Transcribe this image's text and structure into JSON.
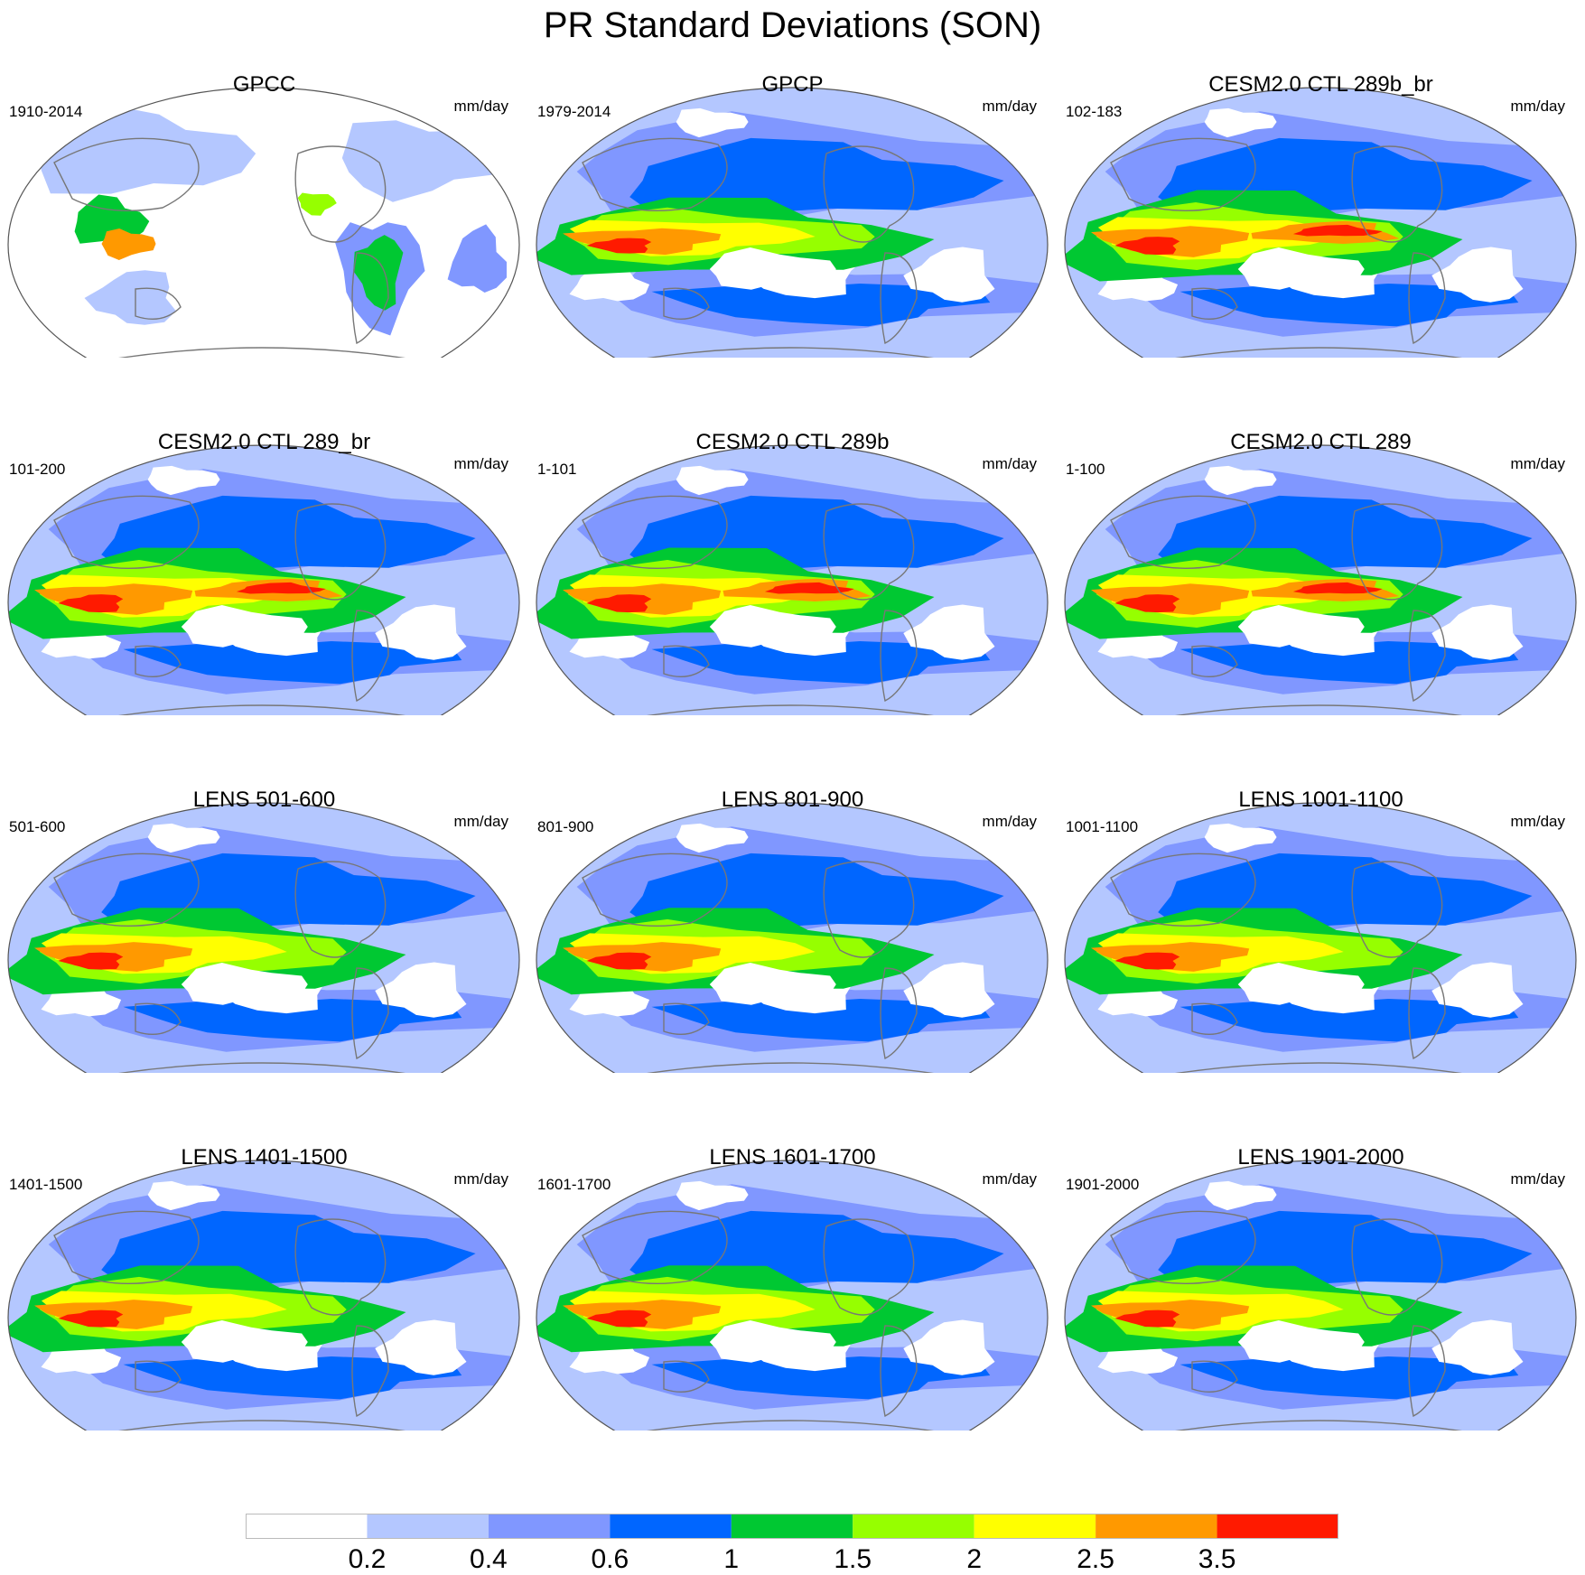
{
  "figure": {
    "title": "PR Standard Deviations (SON)"
  },
  "panels": [
    {
      "title": "GPCC",
      "period": "1910-2014",
      "units": "mm/day",
      "kind": "gpcc",
      "peak": 0.6
    },
    {
      "title": "GPCP",
      "period": "1979-2014",
      "units": "mm/day",
      "kind": "obs",
      "peak": 0.85
    },
    {
      "title": "CESM2.0 CTL 289b_br",
      "period": "102-183",
      "units": "mm/day",
      "kind": "model",
      "peak": 1.0
    },
    {
      "title": "CESM2.0 CTL 289_br",
      "period": "101-200",
      "units": "mm/day",
      "kind": "model",
      "peak": 1.0
    },
    {
      "title": "CESM2.0 CTL 289b",
      "period": "1-101",
      "units": "mm/day",
      "kind": "model",
      "peak": 1.0
    },
    {
      "title": "CESM2.0 CTL 289",
      "period": "1-100",
      "units": "mm/day",
      "kind": "model",
      "peak": 1.0
    },
    {
      "title": "LENS 501-600",
      "period": "501-600",
      "units": "mm/day",
      "kind": "lens",
      "peak": 0.95
    },
    {
      "title": "LENS 801-900",
      "period": "801-900",
      "units": "mm/day",
      "kind": "lens",
      "peak": 0.95
    },
    {
      "title": "LENS 1001-1100",
      "period": "1001-1100",
      "units": "mm/day",
      "kind": "lens",
      "peak": 0.95
    },
    {
      "title": "LENS 1401-1500",
      "period": "1401-1500",
      "units": "mm/day",
      "kind": "lens",
      "peak": 0.95
    },
    {
      "title": "LENS 1601-1700",
      "period": "1601-1700",
      "units": "mm/day",
      "kind": "lens",
      "peak": 0.95
    },
    {
      "title": "LENS 1901-2000",
      "period": "1901-2000",
      "units": "mm/day",
      "kind": "lens",
      "peak": 0.95
    }
  ],
  "colorbar": {
    "levels": [
      "0.2",
      "0.4",
      "0.6",
      "1",
      "1.5",
      "2",
      "2.5",
      "3.5"
    ],
    "colors": [
      "#ffffff",
      "#b4c7ff",
      "#8097ff",
      "#0066ff",
      "#00c832",
      "#96ff00",
      "#ffff00",
      "#ff9900",
      "#ff1a00"
    ]
  },
  "style": {
    "outline_color": "#555555",
    "coast_color": "#777777"
  }
}
